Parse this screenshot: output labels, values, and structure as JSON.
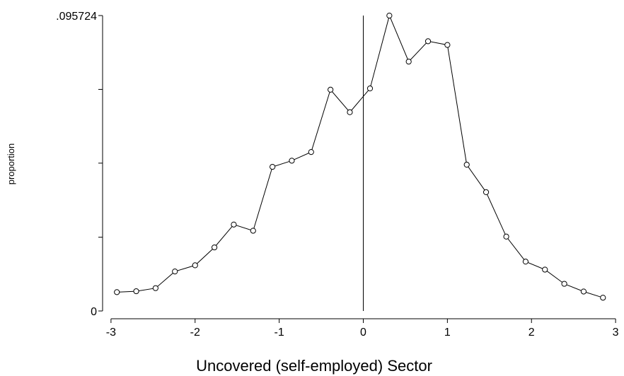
{
  "chart_data": {
    "type": "line",
    "xlabel": "Uncovered (self-employed) Sector",
    "ylabel": "proportion",
    "xlim": [
      -3.1,
      3.1
    ],
    "ylim": [
      0,
      0.095724
    ],
    "x_ticks": [
      -3,
      -2,
      -1,
      0,
      1,
      2,
      3
    ],
    "x_tick_labels": [
      "-3",
      "-2",
      "-1",
      "0",
      "1",
      "2",
      "3"
    ],
    "y_ticks": [
      0,
      0.0239,
      0.0479,
      0.0718,
      0.095724
    ],
    "y_tick_labels": [
      "0",
      "",
      "",
      "",
      ".095724"
    ],
    "reference_line_x": 0,
    "grid": false,
    "marker": "hollow-circle",
    "color": "#000000",
    "series": [
      {
        "x": [
          -2.93,
          -2.7,
          -2.47,
          -2.24,
          -2.0,
          -1.77,
          -1.54,
          -1.31,
          -1.08,
          -0.85,
          -0.62,
          -0.39,
          -0.16,
          0.08,
          0.31,
          0.54,
          0.77,
          1.0,
          1.23,
          1.46,
          1.7,
          1.93,
          2.16,
          2.39,
          2.62,
          2.85
        ],
        "y": [
          0.0061,
          0.0064,
          0.0074,
          0.0128,
          0.0148,
          0.0206,
          0.028,
          0.026,
          0.0467,
          0.0487,
          0.0515,
          0.0717,
          0.0644,
          0.0721,
          0.0957,
          0.0808,
          0.0874,
          0.0862,
          0.0474,
          0.0385,
          0.0241,
          0.016,
          0.0134,
          0.0088,
          0.0063,
          0.0043
        ]
      }
    ]
  }
}
